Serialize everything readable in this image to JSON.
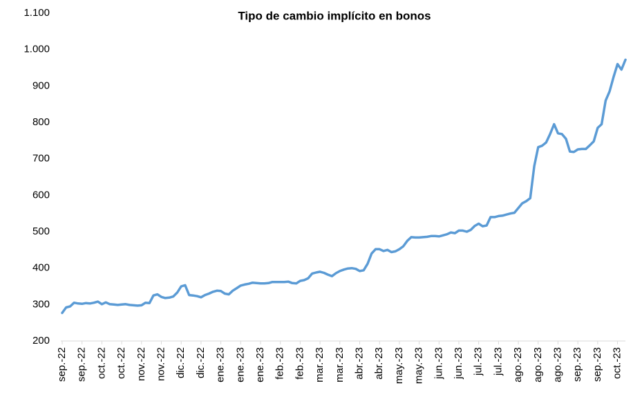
{
  "chart_data": {
    "type": "line",
    "title": "Tipo de cambio implícito en bonos",
    "categories": [
      "sep.-22",
      null,
      null,
      null,
      null,
      "sep.-22",
      null,
      null,
      null,
      null,
      "oct.-22",
      null,
      null,
      null,
      null,
      "oct.-22",
      null,
      null,
      null,
      null,
      "nov.-22",
      null,
      null,
      null,
      null,
      "nov.-22",
      null,
      null,
      null,
      null,
      "dic.-22",
      null,
      null,
      null,
      null,
      "dic.-22",
      null,
      null,
      null,
      null,
      "ene.-23",
      null,
      null,
      null,
      null,
      "ene.-23",
      null,
      null,
      null,
      null,
      "ene.-23",
      null,
      null,
      null,
      null,
      "feb.-23",
      null,
      null,
      null,
      null,
      "feb.-23",
      null,
      null,
      null,
      null,
      "mar.-23",
      null,
      null,
      null,
      null,
      "mar.-23",
      null,
      null,
      null,
      null,
      "abr.-23",
      null,
      null,
      null,
      null,
      "abr.-23",
      null,
      null,
      null,
      null,
      "may.-23",
      null,
      null,
      null,
      null,
      "may.-23",
      null,
      null,
      null,
      null,
      "jun.-23",
      null,
      null,
      null,
      null,
      "jun.-23",
      null,
      null,
      null,
      null,
      "jul.-23",
      null,
      null,
      null,
      null,
      "jul.-23",
      null,
      null,
      null,
      null,
      "ago.-23",
      null,
      null,
      null,
      null,
      "ago.-23",
      null,
      null,
      null,
      null,
      "ago.-23",
      null,
      null,
      null,
      null,
      "sep.-23",
      null,
      null,
      null,
      null,
      "sep.-23",
      null,
      null,
      null,
      null,
      "oct.-23",
      null,
      null
    ],
    "values": [
      277,
      292,
      295,
      305,
      303,
      302,
      304,
      303,
      305,
      308,
      301,
      306,
      301,
      300,
      299,
      300,
      301,
      299,
      298,
      297,
      298,
      305,
      304,
      325,
      328,
      321,
      318,
      319,
      322,
      333,
      350,
      353,
      326,
      325,
      323,
      320,
      326,
      330,
      335,
      338,
      337,
      330,
      328,
      338,
      345,
      352,
      355,
      357,
      360,
      359,
      358,
      358,
      359,
      362,
      362,
      362,
      362,
      363,
      359,
      358,
      365,
      367,
      372,
      385,
      388,
      390,
      387,
      382,
      378,
      386,
      392,
      396,
      399,
      400,
      398,
      392,
      394,
      412,
      440,
      452,
      452,
      447,
      450,
      444,
      446,
      452,
      460,
      475,
      485,
      484,
      484,
      485,
      486,
      488,
      488,
      487,
      490,
      493,
      498,
      496,
      503,
      503,
      500,
      505,
      516,
      522,
      515,
      517,
      540,
      540,
      543,
      544,
      547,
      550,
      552,
      565,
      578,
      584,
      592,
      680,
      732,
      736,
      745,
      768,
      795,
      770,
      768,
      755,
      720,
      719,
      726,
      727,
      727,
      737,
      748,
      785,
      795,
      860,
      885,
      925,
      960,
      945,
      972
    ],
    "color": "#5b9bd5",
    "ylim": [
      200,
      1100
    ],
    "yticks": [
      200,
      300,
      400,
      500,
      600,
      700,
      800,
      900,
      {
        "value": 1000,
        "label": "1.000"
      },
      {
        "value": 1100,
        "label": "1.100"
      }
    ]
  }
}
